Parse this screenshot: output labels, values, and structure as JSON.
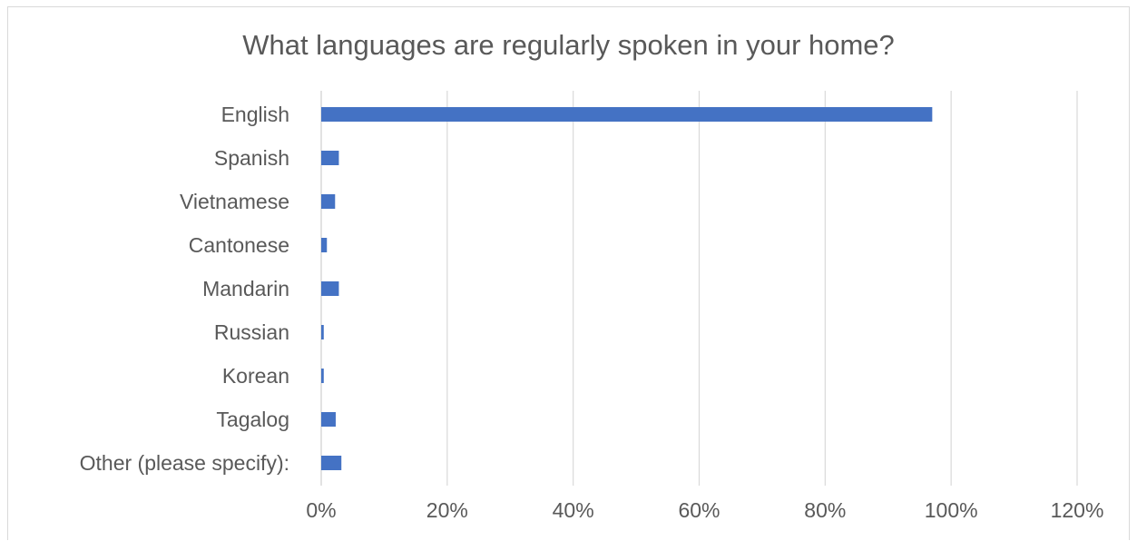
{
  "chart_data": {
    "type": "bar",
    "orientation": "horizontal",
    "title": "What languages are regularly spoken in your home?",
    "xlabel": "",
    "ylabel": "",
    "categories": [
      "English",
      "Spanish",
      "Vietnamese",
      "Cantonese",
      "Mandarin",
      "Russian",
      "Korean",
      "Tagalog",
      "Other (please specify):"
    ],
    "values": [
      97,
      2.8,
      2.2,
      0.9,
      2.8,
      0.4,
      0.4,
      2.3,
      3.2
    ],
    "value_unit": "%",
    "xlim": [
      0,
      120
    ],
    "xticks": [
      "0%",
      "20%",
      "40%",
      "60%",
      "80%",
      "100%",
      "120%"
    ],
    "grid": "vertical",
    "legend": "none",
    "bar_color": "#4472C4",
    "grid_color": "#d9d9d9"
  }
}
